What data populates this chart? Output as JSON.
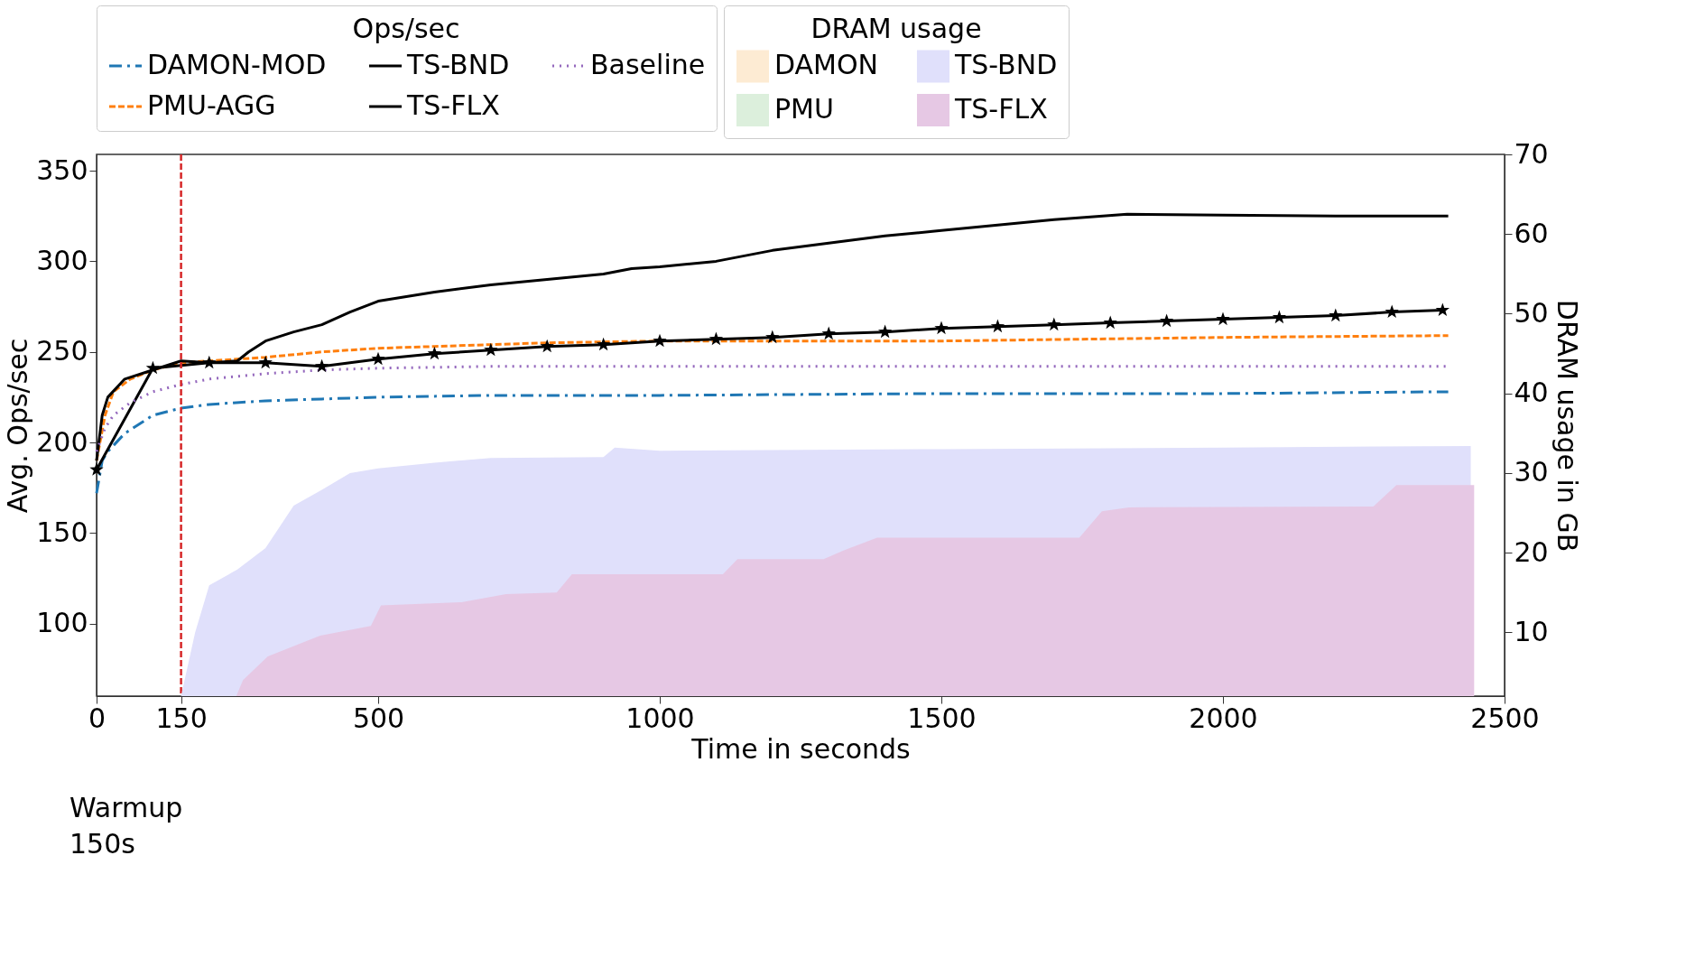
{
  "chart_data": {
    "type": "line",
    "xlabel": "Time in seconds",
    "ylabel": "Avg. Ops/sec",
    "y2label": "DRAM usage in GB",
    "legend_title": [
      "Ops/sec",
      "DRAM usage"
    ],
    "legend": "top",
    "xlim": [
      0,
      2500
    ],
    "xticks": [
      0,
      150,
      500,
      1000,
      1500,
      2000,
      2500
    ],
    "ylim": [
      60,
      359
    ],
    "yticks": [
      100,
      150,
      200,
      250,
      300,
      350
    ],
    "y2lim": [
      2,
      70
    ],
    "y2ticks": [
      10,
      20,
      30,
      40,
      50,
      60,
      70
    ],
    "ref_lines": [
      {
        "axis": "x",
        "value": 150,
        "color": "#d62728",
        "line_style": "dashed"
      }
    ],
    "annotations": [
      "Warmup\n150s"
    ],
    "series": [
      {
        "name": "DAMON-MOD",
        "color": "#1f77b4",
        "line_style": "dashdot",
        "x": [
          0,
          10,
          20,
          50,
          100,
          150,
          200,
          300,
          400,
          500,
          700,
          1000,
          1500,
          2000,
          2400
        ],
        "values": [
          172,
          190,
          195,
          205,
          215,
          219,
          221,
          223,
          224,
          225,
          226,
          226,
          227,
          227,
          228
        ]
      },
      {
        "name": "PMU-AGG",
        "color": "#ff7f0e",
        "line_style": "dashed",
        "x": [
          0,
          15,
          30,
          60,
          100,
          150,
          200,
          300,
          400,
          500,
          600,
          700,
          800,
          1000,
          1500,
          2000,
          2400
        ],
        "values": [
          190,
          215,
          228,
          235,
          240,
          244,
          245,
          247,
          250,
          252,
          253,
          254,
          255,
          256,
          256,
          258,
          259
        ]
      },
      {
        "name": "TS-BND",
        "color": "#000000",
        "line_style": "solid",
        "x": [
          0,
          10,
          20,
          50,
          100,
          150,
          200,
          250,
          270,
          300,
          350,
          400,
          450,
          500,
          600,
          700,
          800,
          900,
          950,
          1000,
          1100,
          1200,
          1300,
          1400,
          1500,
          1600,
          1700,
          1830,
          2000,
          2200,
          2400
        ],
        "values": [
          190,
          215,
          225,
          235,
          240,
          245,
          244,
          245,
          250,
          256,
          261,
          265,
          272,
          278,
          283,
          287,
          290,
          293,
          296,
          297,
          300,
          306,
          310,
          314,
          317,
          320,
          323,
          326,
          325.5,
          325,
          325
        ]
      },
      {
        "name": "TS-FLX",
        "color": "#000000",
        "line_style": "solid",
        "marker": "star",
        "x": [
          0,
          100,
          200,
          300,
          400,
          500,
          600,
          700,
          800,
          900,
          1000,
          1100,
          1200,
          1300,
          1400,
          1500,
          1600,
          1700,
          1800,
          1900,
          2000,
          2100,
          2200,
          2300,
          2390
        ],
        "values": [
          185,
          241,
          244,
          244,
          242,
          246,
          249,
          251,
          253,
          254,
          256,
          257,
          258,
          260,
          261,
          263,
          264,
          265,
          266,
          267,
          268,
          269,
          270,
          272,
          273
        ]
      },
      {
        "name": "Baseline",
        "color": "#9467bd",
        "line_style": "dotted",
        "x": [
          0,
          15,
          30,
          60,
          100,
          150,
          200,
          300,
          400,
          500,
          700,
          1500,
          2400
        ],
        "values": [
          195,
          208,
          215,
          222,
          228,
          232,
          235,
          238,
          240,
          241,
          242,
          242,
          242
        ]
      },
      {
        "name": "DAMON",
        "type": "area",
        "axis": "y2",
        "color": "#fdebd3"
      },
      {
        "name": "PMU",
        "type": "area",
        "axis": "y2",
        "color": "#dcefdc"
      },
      {
        "name": "TS-BND",
        "type": "area",
        "axis": "y2",
        "color": "#e0e0fb",
        "x": [
          150,
          175,
          200,
          250,
          300,
          350,
          400,
          450,
          500,
          600,
          700,
          900,
          920,
          1000,
          1500,
          2000,
          2440
        ],
        "values": [
          2,
          10,
          15.9,
          17.9,
          20.6,
          25.9,
          27.9,
          30,
          30.6,
          31.3,
          31.9,
          32,
          33.2,
          32.8,
          33,
          33.2,
          33.4
        ]
      },
      {
        "name": "TS-FLX",
        "type": "area",
        "axis": "y2",
        "color": "#e6c8e4",
        "x": [
          248,
          260,
          304,
          397,
          487,
          505,
          648,
          727,
          817,
          844,
          1112,
          1138,
          1291,
          1327,
          1386,
          1745,
          1785,
          1833,
          2267,
          2308,
          2446
        ],
        "values": [
          2,
          4,
          7,
          9.6,
          10.8,
          13.4,
          13.8,
          14.8,
          15,
          17.3,
          17.3,
          19.2,
          19.2,
          20.3,
          21.9,
          21.9,
          25.2,
          25.7,
          25.8,
          28.5,
          28.5
        ]
      }
    ]
  }
}
